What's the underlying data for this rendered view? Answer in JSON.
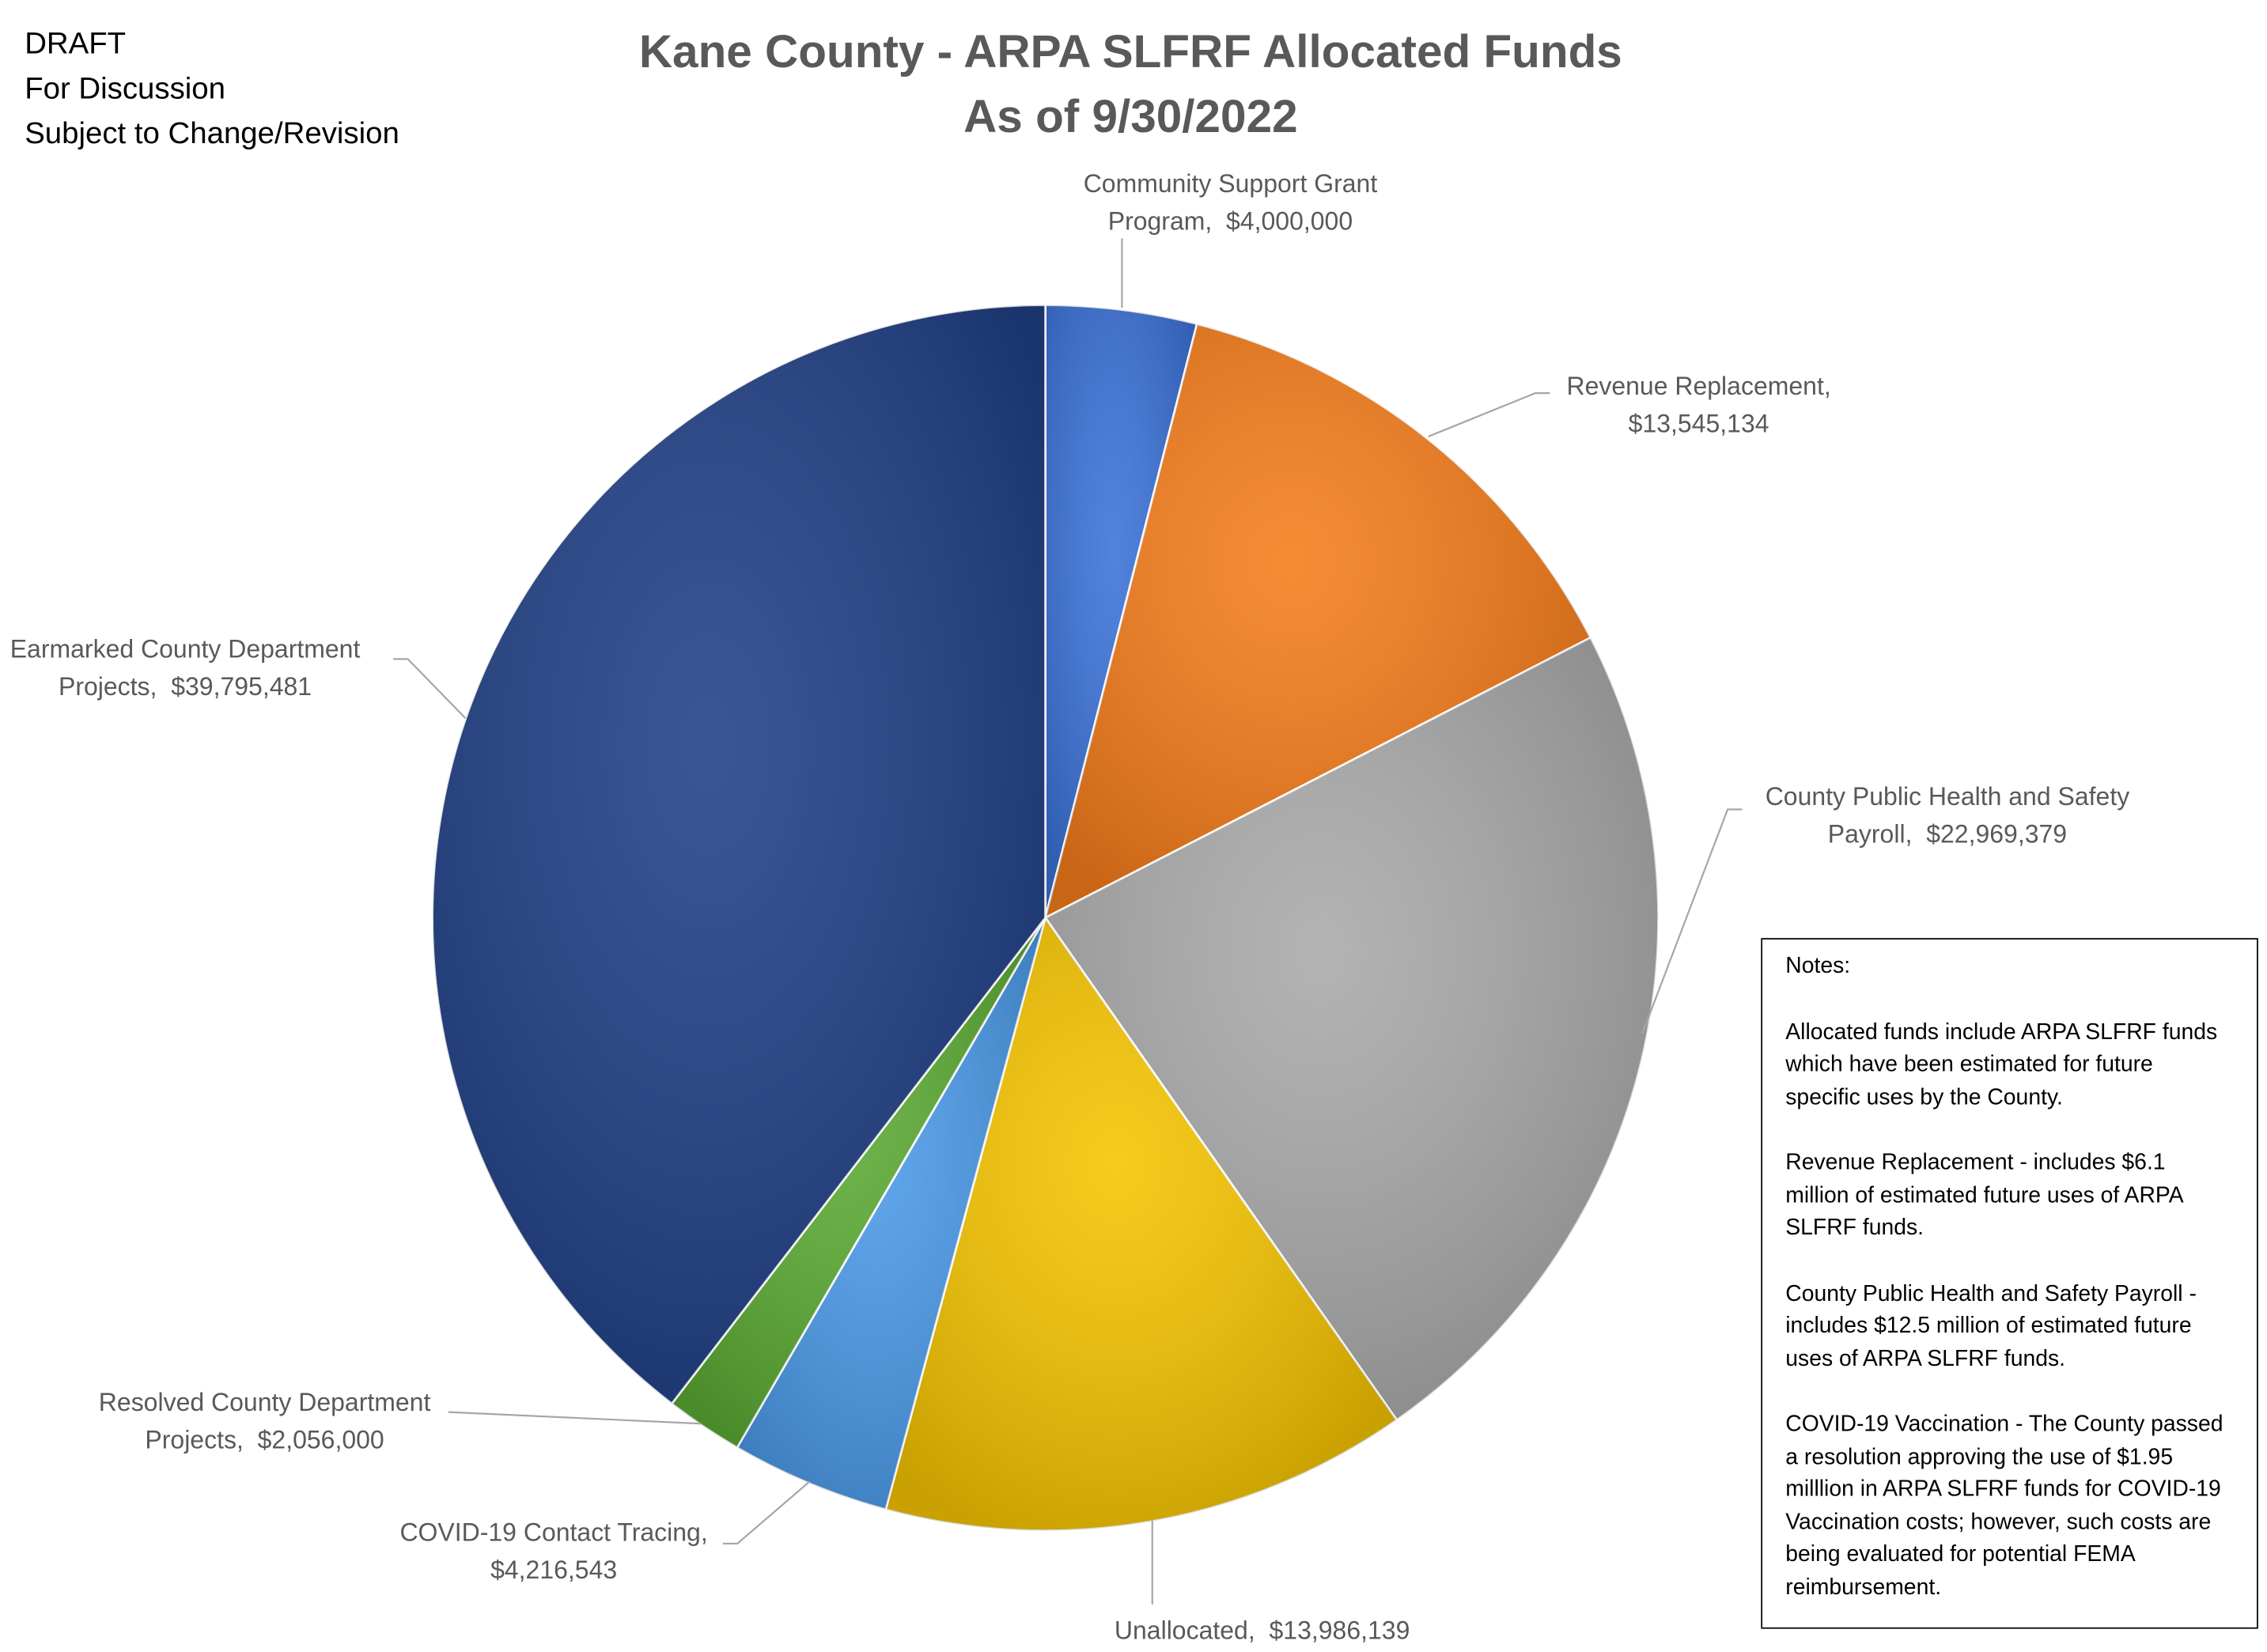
{
  "draft_notice": [
    "DRAFT",
    "For Discussion",
    "Subject to Change/Revision"
  ],
  "chart_data": {
    "type": "pie",
    "title": "Kane County - ARPA SLFRF Allocated Funds",
    "subtitle": "As of 9/30/2022",
    "categories": [
      "Community Support Grant Program",
      "Revenue Replacement",
      "County Public Health and Safety Payroll",
      "Unallocated",
      "COVID-19 Contact Tracing",
      "Resolved County Department Projects",
      "Earmarked County Department Projects"
    ],
    "values": [
      4000000,
      13545134,
      22969379,
      13986139,
      4216543,
      2056000,
      39795481
    ],
    "value_labels": [
      "$4,000,000",
      "$13,545,134",
      "$22,969,379",
      "$13,986,139",
      "$4,216,543",
      "$2,056,000",
      "$39,795,481"
    ],
    "label_separator": ",  ",
    "colors": [
      "#3a72d8",
      "#f57c1a",
      "#a9a9a9",
      "#f5c400",
      "#4a9ae8",
      "#5aaa32",
      "#1f3f85"
    ]
  },
  "notes": {
    "title": "Notes:",
    "paragraphs": [
      "Allocated funds include ARPA SLFRF funds which have been estimated for future specific uses by the County.",
      "Revenue Replacement - includes $6.1 million of estimated future uses of ARPA SLFRF funds.",
      "County Public Health and Safety Payroll - includes $12.5 million of estimated future uses of ARPA SLFRF funds.",
      "COVID-19 Vaccination - The County passed a resolution approving the use of $1.95 milllion in ARPA SLFRF funds for COVID-19 Vaccination costs; however, such costs are being evaluated for potential FEMA reimbursement."
    ]
  }
}
